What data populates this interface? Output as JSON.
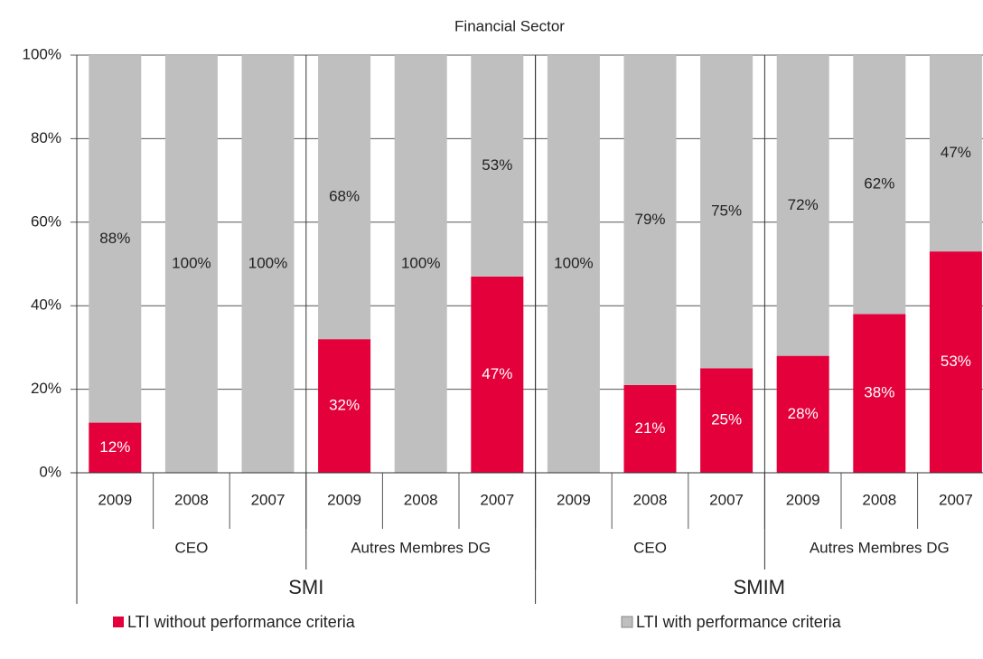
{
  "chart_data": {
    "type": "stacked_bar",
    "title": "Financial Sector",
    "categories": [
      "2009",
      "2008",
      "2007",
      "2009",
      "2008",
      "2007",
      "2009",
      "2008",
      "2007",
      "2009",
      "2008",
      "2007"
    ],
    "category_groups": [
      {
        "name": "CEO",
        "size": 3
      },
      {
        "name": "Autres Membres DG",
        "size": 3
      },
      {
        "name": "CEO",
        "size": 3
      },
      {
        "name": "Autres Membres DG",
        "size": 3
      }
    ],
    "outer_groups": [
      {
        "name": "SMI",
        "size": 6
      },
      {
        "name": "SMIM",
        "size": 6
      }
    ],
    "series": [
      {
        "name": "LTI without performance criteria",
        "color": "#e4003b",
        "values": [
          12,
          0,
          0,
          32,
          0,
          47,
          0,
          21,
          25,
          28,
          38,
          53
        ],
        "value_labels": [
          "12%",
          null,
          null,
          "32%",
          null,
          "47%",
          null,
          "21%",
          "25%",
          "28%",
          "38%",
          "53%"
        ]
      },
      {
        "name": "LTI with performance criteria",
        "color": "#bfbfbf",
        "values": [
          88,
          100,
          100,
          68,
          100,
          53,
          100,
          79,
          75,
          72,
          62,
          47
        ],
        "value_labels": [
          "88%",
          "100%",
          "100%",
          "68%",
          "100%",
          "53%",
          "100%",
          "79%",
          "75%",
          "72%",
          "62%",
          "47%"
        ]
      }
    ],
    "ylim": [
      0,
      100
    ],
    "yticks": [
      {
        "value": 0,
        "label": "0%"
      },
      {
        "value": 20,
        "label": "20%"
      },
      {
        "value": 40,
        "label": "40%"
      },
      {
        "value": 60,
        "label": "60%"
      },
      {
        "value": 80,
        "label": "80%"
      },
      {
        "value": 100,
        "label": "100%"
      }
    ],
    "grid": true
  }
}
